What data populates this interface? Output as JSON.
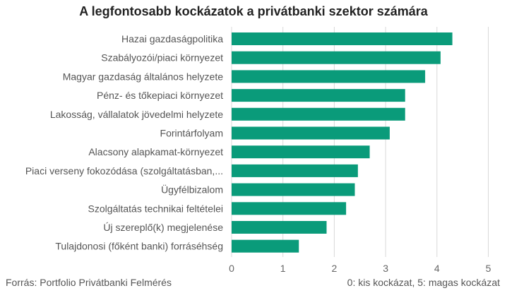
{
  "chart_data": {
    "type": "bar",
    "orientation": "horizontal",
    "title": "A legfontosabb kockázatok a privátbanki szektor számára",
    "categories": [
      "Hazai gazdaságpolitika",
      "Szabályozói/piaci környezet",
      "Magyar gazdaság általános helyzete",
      "Pénz- és tőkepiaci környezet",
      "Lakosság, vállalatok jövedelmi helyzete",
      "Forintárfolyam",
      "Alacsony alapkamat-környezet",
      "Piaci verseny fokozódása (szolgáltatásban,...",
      "Ügyfélbizalom",
      "Szolgáltatás technikai feltételei",
      "Új szereplő(k) megjelenése",
      "Tulajdonosi (főként banki) forráséhség"
    ],
    "values": [
      4.3,
      4.07,
      3.77,
      3.38,
      3.38,
      3.08,
      2.69,
      2.46,
      2.4,
      2.23,
      1.85,
      1.31
    ],
    "xlim": [
      0,
      5
    ],
    "xticks": [
      "0",
      "1",
      "2",
      "3",
      "4",
      "5"
    ],
    "grid": true,
    "bar_color": "#0a9b7a"
  },
  "footer": {
    "source": "Forrás: Portfolio Privátbanki Felmérés",
    "scale_note": "0: kis kockázat, 5: magas kockázat"
  }
}
